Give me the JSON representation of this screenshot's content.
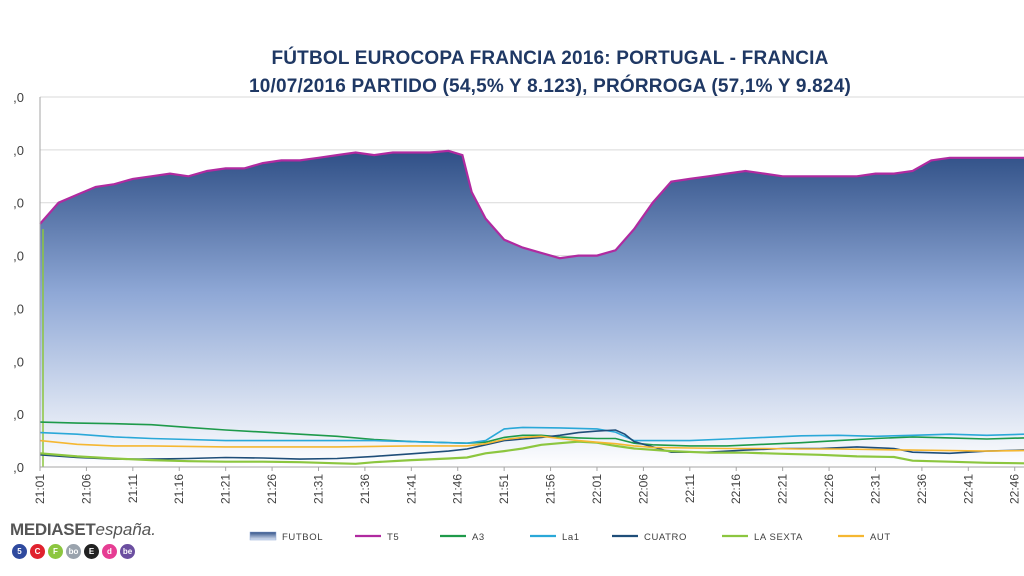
{
  "chart_data": {
    "type": "area",
    "title_line1": "FÚTBOL EUROCOPA FRANCIA 2016: PORTUGAL - FRANCIA",
    "title_line2": "10/07/2016 PARTIDO (54,5% Y 8.123), PRÓRROGA (57,1% Y 9.824)",
    "y_tick_labels": [
      ",0",
      ",0",
      ",0",
      ",0",
      ",0",
      ",0",
      ",0",
      ",0"
    ],
    "ylim": [
      0,
      70
    ],
    "x_tick_labels": [
      "21:01",
      "21:06",
      "21:11",
      "21:16",
      "21:21",
      "21:26",
      "21:31",
      "21:36",
      "21:41",
      "21:46",
      "21:51",
      "21:56",
      "22:01",
      "22:06",
      "22:11",
      "22:16",
      "22:21",
      "22:26",
      "22:31",
      "22:36",
      "22:41",
      "22:46"
    ],
    "x_minutes": [
      0,
      106
    ],
    "grid": true,
    "legend_position": "bottom",
    "series": [
      {
        "name": "FUTBOL",
        "type": "area",
        "color": "#2f4f86",
        "points": [
          [
            0,
            46
          ],
          [
            2,
            50
          ],
          [
            4,
            51.5
          ],
          [
            6,
            53
          ],
          [
            8,
            53.5
          ],
          [
            10,
            54.5
          ],
          [
            12,
            55
          ],
          [
            14,
            55.5
          ],
          [
            16,
            55
          ],
          [
            18,
            56
          ],
          [
            20,
            56.5
          ],
          [
            22,
            56.5
          ],
          [
            24,
            57.5
          ],
          [
            26,
            58
          ],
          [
            28,
            58
          ],
          [
            30,
            58.5
          ],
          [
            32,
            59
          ],
          [
            34,
            59.5
          ],
          [
            36,
            59
          ],
          [
            38,
            59.5
          ],
          [
            40,
            59.5
          ],
          [
            42,
            59.5
          ],
          [
            44,
            59.8
          ],
          [
            45.5,
            59
          ],
          [
            46.5,
            52
          ],
          [
            48,
            47
          ],
          [
            50,
            43
          ],
          [
            52,
            41.5
          ],
          [
            54,
            40.5
          ],
          [
            56,
            39.5
          ],
          [
            58,
            40
          ],
          [
            60,
            40
          ],
          [
            62,
            41
          ],
          [
            64,
            45
          ],
          [
            66,
            50
          ],
          [
            68,
            54
          ],
          [
            70,
            54.5
          ],
          [
            72,
            55
          ],
          [
            74,
            55.5
          ],
          [
            76,
            56
          ],
          [
            78,
            55.5
          ],
          [
            80,
            55
          ],
          [
            82,
            55
          ],
          [
            84,
            55
          ],
          [
            86,
            55
          ],
          [
            88,
            55
          ],
          [
            90,
            55.5
          ],
          [
            92,
            55.5
          ],
          [
            94,
            56
          ],
          [
            96,
            58
          ],
          [
            98,
            58.5
          ],
          [
            100,
            58.5
          ],
          [
            102,
            58.5
          ],
          [
            104,
            58.5
          ],
          [
            106,
            58.5
          ]
        ]
      },
      {
        "name": "T5",
        "color": "#b02aa0"
      },
      {
        "name": "A3",
        "color": "#1e9a4a",
        "points": [
          [
            0,
            8.5
          ],
          [
            4,
            8.3
          ],
          [
            8,
            8.2
          ],
          [
            12,
            8
          ],
          [
            16,
            7.5
          ],
          [
            20,
            7
          ],
          [
            24,
            6.6
          ],
          [
            28,
            6.2
          ],
          [
            32,
            5.8
          ],
          [
            36,
            5.2
          ],
          [
            40,
            4.8
          ],
          [
            44,
            4.6
          ],
          [
            46,
            4.5
          ],
          [
            48,
            4.7
          ],
          [
            50,
            5.6
          ],
          [
            52,
            6
          ],
          [
            54,
            6
          ],
          [
            56,
            5.7
          ],
          [
            58,
            5.5
          ],
          [
            60,
            5.4
          ],
          [
            62,
            5.4
          ],
          [
            64,
            4.5
          ],
          [
            66,
            4.2
          ],
          [
            70,
            4
          ],
          [
            74,
            4
          ],
          [
            78,
            4.3
          ],
          [
            82,
            4.6
          ],
          [
            86,
            5
          ],
          [
            90,
            5.4
          ],
          [
            94,
            5.7
          ],
          [
            98,
            5.5
          ],
          [
            102,
            5.3
          ],
          [
            106,
            5.5
          ]
        ]
      },
      {
        "name": "La1",
        "color": "#2aa8d8",
        "points": [
          [
            0,
            6.5
          ],
          [
            4,
            6.2
          ],
          [
            8,
            5.7
          ],
          [
            12,
            5.4
          ],
          [
            16,
            5.2
          ],
          [
            20,
            5
          ],
          [
            24,
            5
          ],
          [
            28,
            5
          ],
          [
            32,
            5
          ],
          [
            36,
            5
          ],
          [
            40,
            4.8
          ],
          [
            44,
            4.6
          ],
          [
            46,
            4.5
          ],
          [
            48,
            5
          ],
          [
            50,
            7.2
          ],
          [
            52,
            7.5
          ],
          [
            56,
            7.4
          ],
          [
            60,
            7.2
          ],
          [
            62,
            6.6
          ],
          [
            64,
            5
          ],
          [
            66,
            5
          ],
          [
            70,
            5
          ],
          [
            74,
            5.3
          ],
          [
            78,
            5.6
          ],
          [
            82,
            5.9
          ],
          [
            86,
            6
          ],
          [
            90,
            5.8
          ],
          [
            94,
            6
          ],
          [
            98,
            6.2
          ],
          [
            102,
            6
          ],
          [
            106,
            6.2
          ]
        ]
      },
      {
        "name": "CUATRO",
        "color": "#1f4e79",
        "points": [
          [
            0,
            2.3
          ],
          [
            4,
            1.8
          ],
          [
            8,
            1.5
          ],
          [
            12,
            1.5
          ],
          [
            16,
            1.6
          ],
          [
            20,
            1.8
          ],
          [
            24,
            1.7
          ],
          [
            28,
            1.5
          ],
          [
            32,
            1.6
          ],
          [
            36,
            2
          ],
          [
            40,
            2.5
          ],
          [
            44,
            3
          ],
          [
            46,
            3.4
          ],
          [
            48,
            4.2
          ],
          [
            50,
            5
          ],
          [
            52,
            5.3
          ],
          [
            54,
            5.6
          ],
          [
            56,
            6
          ],
          [
            58,
            6.5
          ],
          [
            60,
            6.8
          ],
          [
            62,
            7
          ],
          [
            63,
            6.2
          ],
          [
            64,
            4.8
          ],
          [
            66,
            3.8
          ],
          [
            68,
            2.8
          ],
          [
            72,
            2.8
          ],
          [
            76,
            3.2
          ],
          [
            80,
            3.5
          ],
          [
            84,
            3.5
          ],
          [
            88,
            3.8
          ],
          [
            92,
            3.5
          ],
          [
            94,
            2.8
          ],
          [
            98,
            2.6
          ],
          [
            102,
            3
          ],
          [
            106,
            3.2
          ]
        ]
      },
      {
        "name": "LA SEXTA",
        "color": "#8cc63f",
        "points": [
          [
            0,
            2.6
          ],
          [
            4,
            2
          ],
          [
            8,
            1.6
          ],
          [
            12,
            1.3
          ],
          [
            16,
            1.1
          ],
          [
            20,
            1
          ],
          [
            24,
            1
          ],
          [
            28,
            0.9
          ],
          [
            32,
            0.7
          ],
          [
            34,
            0.6
          ],
          [
            36,
            0.9
          ],
          [
            40,
            1.3
          ],
          [
            44,
            1.6
          ],
          [
            46,
            1.8
          ],
          [
            48,
            2.6
          ],
          [
            50,
            3
          ],
          [
            52,
            3.5
          ],
          [
            54,
            4.2
          ],
          [
            56,
            4.5
          ],
          [
            58,
            4.8
          ],
          [
            60,
            4.6
          ],
          [
            62,
            4
          ],
          [
            64,
            3.5
          ],
          [
            68,
            3
          ],
          [
            72,
            2.7
          ],
          [
            76,
            2.7
          ],
          [
            80,
            2.5
          ],
          [
            84,
            2.3
          ],
          [
            88,
            2
          ],
          [
            92,
            1.9
          ],
          [
            94,
            1.2
          ],
          [
            98,
            1
          ],
          [
            102,
            0.8
          ],
          [
            106,
            0.7
          ]
        ]
      },
      {
        "name": "AUT",
        "color": "#f5b731",
        "points": [
          [
            0,
            5
          ],
          [
            4,
            4.3
          ],
          [
            8,
            4
          ],
          [
            12,
            4
          ],
          [
            16,
            3.9
          ],
          [
            20,
            3.8
          ],
          [
            24,
            3.8
          ],
          [
            28,
            3.8
          ],
          [
            32,
            3.8
          ],
          [
            36,
            3.9
          ],
          [
            40,
            4
          ],
          [
            44,
            4
          ],
          [
            46,
            4
          ],
          [
            48,
            4.4
          ],
          [
            50,
            5.2
          ],
          [
            52,
            5.6
          ],
          [
            54,
            5.8
          ],
          [
            56,
            5.4
          ],
          [
            58,
            5
          ],
          [
            60,
            4.7
          ],
          [
            62,
            4.4
          ],
          [
            64,
            4
          ],
          [
            66,
            3.7
          ],
          [
            70,
            3.6
          ],
          [
            74,
            3.5
          ],
          [
            78,
            3.5
          ],
          [
            82,
            3.4
          ],
          [
            86,
            3.4
          ],
          [
            90,
            3.3
          ],
          [
            94,
            3.2
          ],
          [
            98,
            3.1
          ],
          [
            102,
            3
          ],
          [
            106,
            3.1
          ]
        ]
      }
    ]
  },
  "branding": {
    "logo_word1": "MEDIASET",
    "logo_word2": "españa.",
    "channels": [
      {
        "label": "5",
        "color": "#2f4a9e"
      },
      {
        "label": "C",
        "color": "#e0222e"
      },
      {
        "label": "F",
        "color": "#8cc63f"
      },
      {
        "label": "bo",
        "color": "#9aa3ad"
      },
      {
        "label": "E",
        "color": "#222222"
      },
      {
        "label": "d",
        "color": "#e63d93"
      },
      {
        "label": "be",
        "color": "#6b4fa0"
      }
    ]
  }
}
